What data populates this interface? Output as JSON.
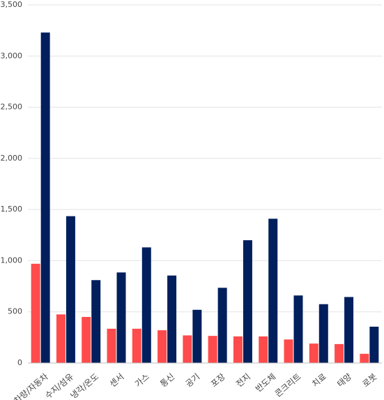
{
  "chart_data": {
    "type": "bar",
    "title": "",
    "xlabel": "",
    "ylabel": "",
    "ylim": [
      0,
      3500
    ],
    "yticks": [
      0,
      500,
      1000,
      1500,
      2000,
      2500,
      3000,
      3500
    ],
    "ytick_labels": [
      "0",
      "500",
      "1,000",
      "1,500",
      "2,000",
      "2,500",
      "3,000",
      "3,500"
    ],
    "grid": true,
    "legend": "none",
    "categories": [
      "차량/자동차",
      "수지/섬유",
      "냉각/온도",
      "센서",
      "가스",
      "통신",
      "공기",
      "포장",
      "전지",
      "반도체",
      "콘크리트",
      "치료",
      "태양",
      "로봇"
    ],
    "series": [
      {
        "color": "#ff4b4b",
        "values": [
          970,
          475,
          450,
          335,
          335,
          320,
          270,
          265,
          260,
          260,
          230,
          190,
          185,
          90
        ]
      },
      {
        "color": "#001f5c",
        "values": [
          3230,
          1435,
          810,
          885,
          1130,
          855,
          520,
          735,
          1200,
          1410,
          660,
          575,
          645,
          355
        ]
      }
    ]
  }
}
